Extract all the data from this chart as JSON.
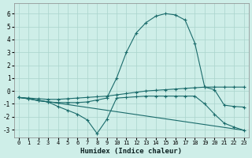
{
  "xlabel": "Humidex (Indice chaleur)",
  "bg_color": "#ceeee8",
  "grid_color": "#aad4cc",
  "line_color": "#1a6b6b",
  "xlim": [
    -0.5,
    23.5
  ],
  "ylim": [
    -3.6,
    6.8
  ],
  "yticks": [
    -3,
    -2,
    -1,
    0,
    1,
    2,
    3,
    4,
    5,
    6
  ],
  "xticks": [
    0,
    1,
    2,
    3,
    4,
    5,
    6,
    7,
    8,
    9,
    10,
    11,
    12,
    13,
    14,
    15,
    16,
    17,
    18,
    19,
    20,
    21,
    22,
    23
  ],
  "series": [
    {
      "x": [
        0,
        1,
        2,
        3,
        4,
        5,
        6,
        7,
        8,
        9,
        10,
        11,
        12,
        13,
        14,
        15,
        16,
        17,
        18,
        19,
        20,
        21,
        22,
        23
      ],
      "y": [
        -0.5,
        -0.6,
        -0.75,
        -0.85,
        -0.9,
        -0.9,
        -0.9,
        -0.85,
        -0.7,
        -0.55,
        1.0,
        3.0,
        4.5,
        5.3,
        5.8,
        6.0,
        5.9,
        5.5,
        3.7,
        0.3,
        0.3,
        0.3,
        0.3,
        0.3
      ],
      "marker": true
    },
    {
      "x": [
        0,
        1,
        2,
        3,
        4,
        5,
        6,
        7,
        8,
        9,
        10,
        11,
        12,
        13,
        14,
        15,
        16,
        17,
        18,
        19,
        20,
        21,
        22,
        23
      ],
      "y": [
        -0.5,
        -0.55,
        -0.6,
        -0.65,
        -0.65,
        -0.6,
        -0.55,
        -0.5,
        -0.45,
        -0.4,
        -0.3,
        -0.2,
        -0.1,
        0.0,
        0.05,
        0.1,
        0.15,
        0.2,
        0.25,
        0.3,
        0.1,
        -1.1,
        -1.2,
        -1.25
      ],
      "marker": true
    },
    {
      "x": [
        0,
        1,
        2,
        3,
        4,
        5,
        6,
        7,
        8,
        9,
        10,
        11,
        12,
        13,
        14,
        15,
        16,
        17,
        18,
        19,
        20,
        21,
        22,
        23
      ],
      "y": [
        -0.5,
        -0.6,
        -0.75,
        -0.85,
        -1.2,
        -1.5,
        -1.8,
        -2.25,
        -3.3,
        -2.2,
        -0.55,
        -0.5,
        -0.45,
        -0.4,
        -0.4,
        -0.4,
        -0.4,
        -0.4,
        -0.4,
        -1.0,
        -1.8,
        -2.5,
        -2.8,
        -3.05
      ],
      "marker": true
    },
    {
      "x": [
        0,
        23
      ],
      "y": [
        -0.5,
        -3.05
      ],
      "marker": false
    }
  ]
}
